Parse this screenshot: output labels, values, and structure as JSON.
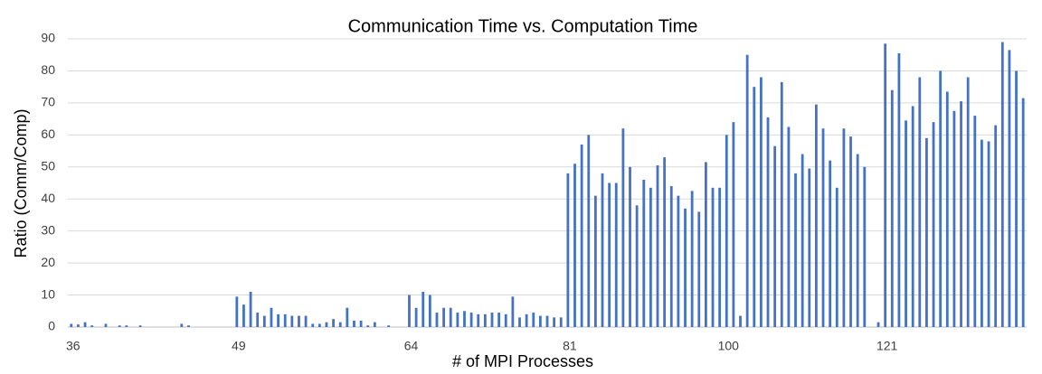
{
  "chart_data": {
    "type": "bar",
    "title": "Communication Time vs. Computation Time",
    "x_label": "# of MPI Processes",
    "y_label": "Ratio (Comm/Comp)",
    "color": "#4472c4",
    "grid": true,
    "ylim": [
      0,
      90
    ],
    "yticks": [
      0,
      10,
      20,
      30,
      40,
      50,
      60,
      70,
      80,
      90
    ],
    "categories": [
      36,
      null,
      null,
      null,
      null,
      null,
      null,
      null,
      null,
      null,
      null,
      null,
      null,
      null,
      null,
      null,
      null,
      null,
      null,
      null,
      null,
      null,
      null,
      null,
      49,
      null,
      null,
      null,
      null,
      null,
      null,
      null,
      null,
      null,
      null,
      null,
      null,
      null,
      null,
      null,
      null,
      null,
      null,
      null,
      null,
      null,
      null,
      null,
      null,
      64,
      null,
      null,
      null,
      null,
      null,
      null,
      null,
      null,
      null,
      null,
      null,
      null,
      null,
      null,
      null,
      null,
      null,
      null,
      null,
      null,
      null,
      null,
      81,
      null,
      null,
      null,
      null,
      null,
      null,
      null,
      null,
      null,
      null,
      null,
      null,
      null,
      null,
      null,
      null,
      null,
      null,
      null,
      null,
      null,
      null,
      100,
      null,
      null,
      null,
      null,
      null,
      null,
      null,
      null,
      null,
      null,
      null,
      null,
      null,
      null,
      null,
      null,
      null,
      null,
      null,
      null,
      null,
      null,
      121,
      null,
      null,
      null,
      null,
      null,
      null,
      null,
      null,
      null,
      null,
      null,
      null,
      null,
      null,
      null,
      null,
      null,
      null,
      null,
      null
    ],
    "values": [
      1,
      0.8,
      1.5,
      0.5,
      0,
      1,
      0,
      0.5,
      0.5,
      0,
      0.5,
      0,
      0,
      0,
      0,
      0,
      1,
      0.5,
      0,
      0,
      0,
      0,
      0,
      0,
      9.5,
      7,
      11,
      4.5,
      3.5,
      6,
      4,
      4,
      3.5,
      3.5,
      3.5,
      1,
      1,
      1.5,
      2.5,
      1.5,
      6,
      2,
      2,
      0.5,
      1.5,
      0,
      0.5,
      0,
      0,
      10,
      6,
      11,
      10,
      4.5,
      6,
      6,
      4.5,
      5,
      4.5,
      4,
      4,
      4.5,
      4.5,
      4,
      9.5,
      3,
      4,
      4.5,
      3.5,
      3.5,
      3,
      3,
      48,
      51,
      57,
      60,
      41,
      48,
      45,
      45,
      62,
      50,
      38,
      46,
      43.5,
      50.5,
      53,
      44,
      41,
      37,
      42.5,
      36,
      51.5,
      43.5,
      43.5,
      60,
      64,
      3.5,
      85,
      75,
      78,
      65.5,
      56.5,
      76.5,
      62.5,
      48,
      54,
      49.5,
      69.5,
      62,
      52,
      43.5,
      62,
      59.5,
      54,
      50,
      0,
      1.5,
      88.5,
      74,
      85.5,
      64.5,
      69,
      78,
      59,
      64,
      80,
      73.5,
      67.5,
      70.5,
      78,
      66,
      58.5,
      58,
      63,
      89,
      86.5,
      80,
      71.5
    ]
  }
}
